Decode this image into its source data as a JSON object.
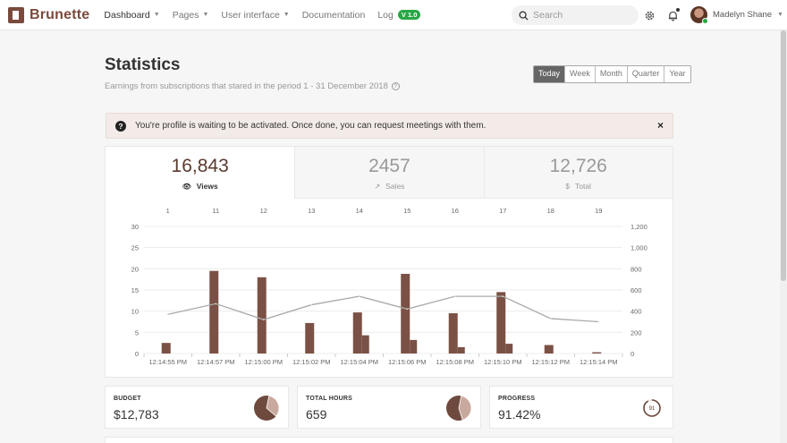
{
  "brand": {
    "name": "Brunette"
  },
  "nav": [
    {
      "label": "Dashboard",
      "caret": true,
      "active": true
    },
    {
      "label": "Pages",
      "caret": true
    },
    {
      "label": "User interface",
      "caret": true
    },
    {
      "label": "Documentation",
      "caret": false
    },
    {
      "label": "Log",
      "caret": false,
      "badge": "V 1.0"
    }
  ],
  "search": {
    "placeholder": "Search"
  },
  "user": {
    "name": "Madelyn Shane"
  },
  "header": {
    "title": "Statistics",
    "subtitle": "Earnings from subscriptions that stared in the period 1 - 31 December 2018",
    "periods": [
      "Today",
      "Week",
      "Month",
      "Quarter",
      "Year"
    ],
    "selected_period": "Today"
  },
  "alert": {
    "text": "You're profile is waiting to be activated. Once done, you can request meetings with them.",
    "close": "×"
  },
  "stats": [
    {
      "value": "16,843",
      "label": "Views",
      "icon": "eye-icon",
      "active": true
    },
    {
      "value": "2457",
      "label": "Sales",
      "icon": "trend-icon",
      "active": false
    },
    {
      "value": "12,726",
      "label": "Total",
      "icon": "dollar-icon",
      "active": false
    }
  ],
  "chart_data": {
    "type": "bar",
    "top_x_labels": [
      "1",
      "11",
      "12",
      "13",
      "14",
      "15",
      "16",
      "17",
      "18",
      "19"
    ],
    "categories": [
      "12:14:55 PM",
      "12:14:57 PM",
      "12:15:00 PM",
      "12:15:02 PM",
      "12:15:04 PM",
      "12:15:06 PM",
      "12:15:08 PM",
      "12:15:10 PM",
      "12:15:12 PM",
      "12:15:14 PM"
    ],
    "ylim_left": [
      0,
      30
    ],
    "left_ticks": [
      0,
      5,
      10,
      15,
      20,
      25,
      30
    ],
    "ylim_right": [
      0,
      1200
    ],
    "right_ticks": [
      "0",
      "200",
      "400",
      "600",
      "800",
      "1,000",
      "1,200"
    ],
    "series": [
      {
        "values": [
          2.5,
          19.5,
          18,
          7.2,
          9.7,
          18.8,
          9.5,
          14.5,
          2,
          0.3
        ]
      },
      {
        "values": [
          null,
          null,
          null,
          null,
          4.3,
          3.2,
          1.5,
          2.3,
          null,
          null
        ]
      },
      {
        "values": [
          370,
          470,
          320,
          460,
          540,
          420,
          540,
          540,
          330,
          300
        ]
      }
    ],
    "colors": {
      "bar": "#7b5145",
      "line": "#aaaaaa",
      "grid": "#ececec"
    }
  },
  "cards": [
    {
      "label": "BUDGET",
      "value": "$12,783",
      "chart": "pie",
      "share": 0.33
    },
    {
      "label": "TOTAL HOURS",
      "value": "659",
      "chart": "pie",
      "share": 0.42
    },
    {
      "label": "PROGRESS",
      "value": "91.42%",
      "chart": "ring",
      "share": 0.9142,
      "ring_label": "91"
    }
  ]
}
